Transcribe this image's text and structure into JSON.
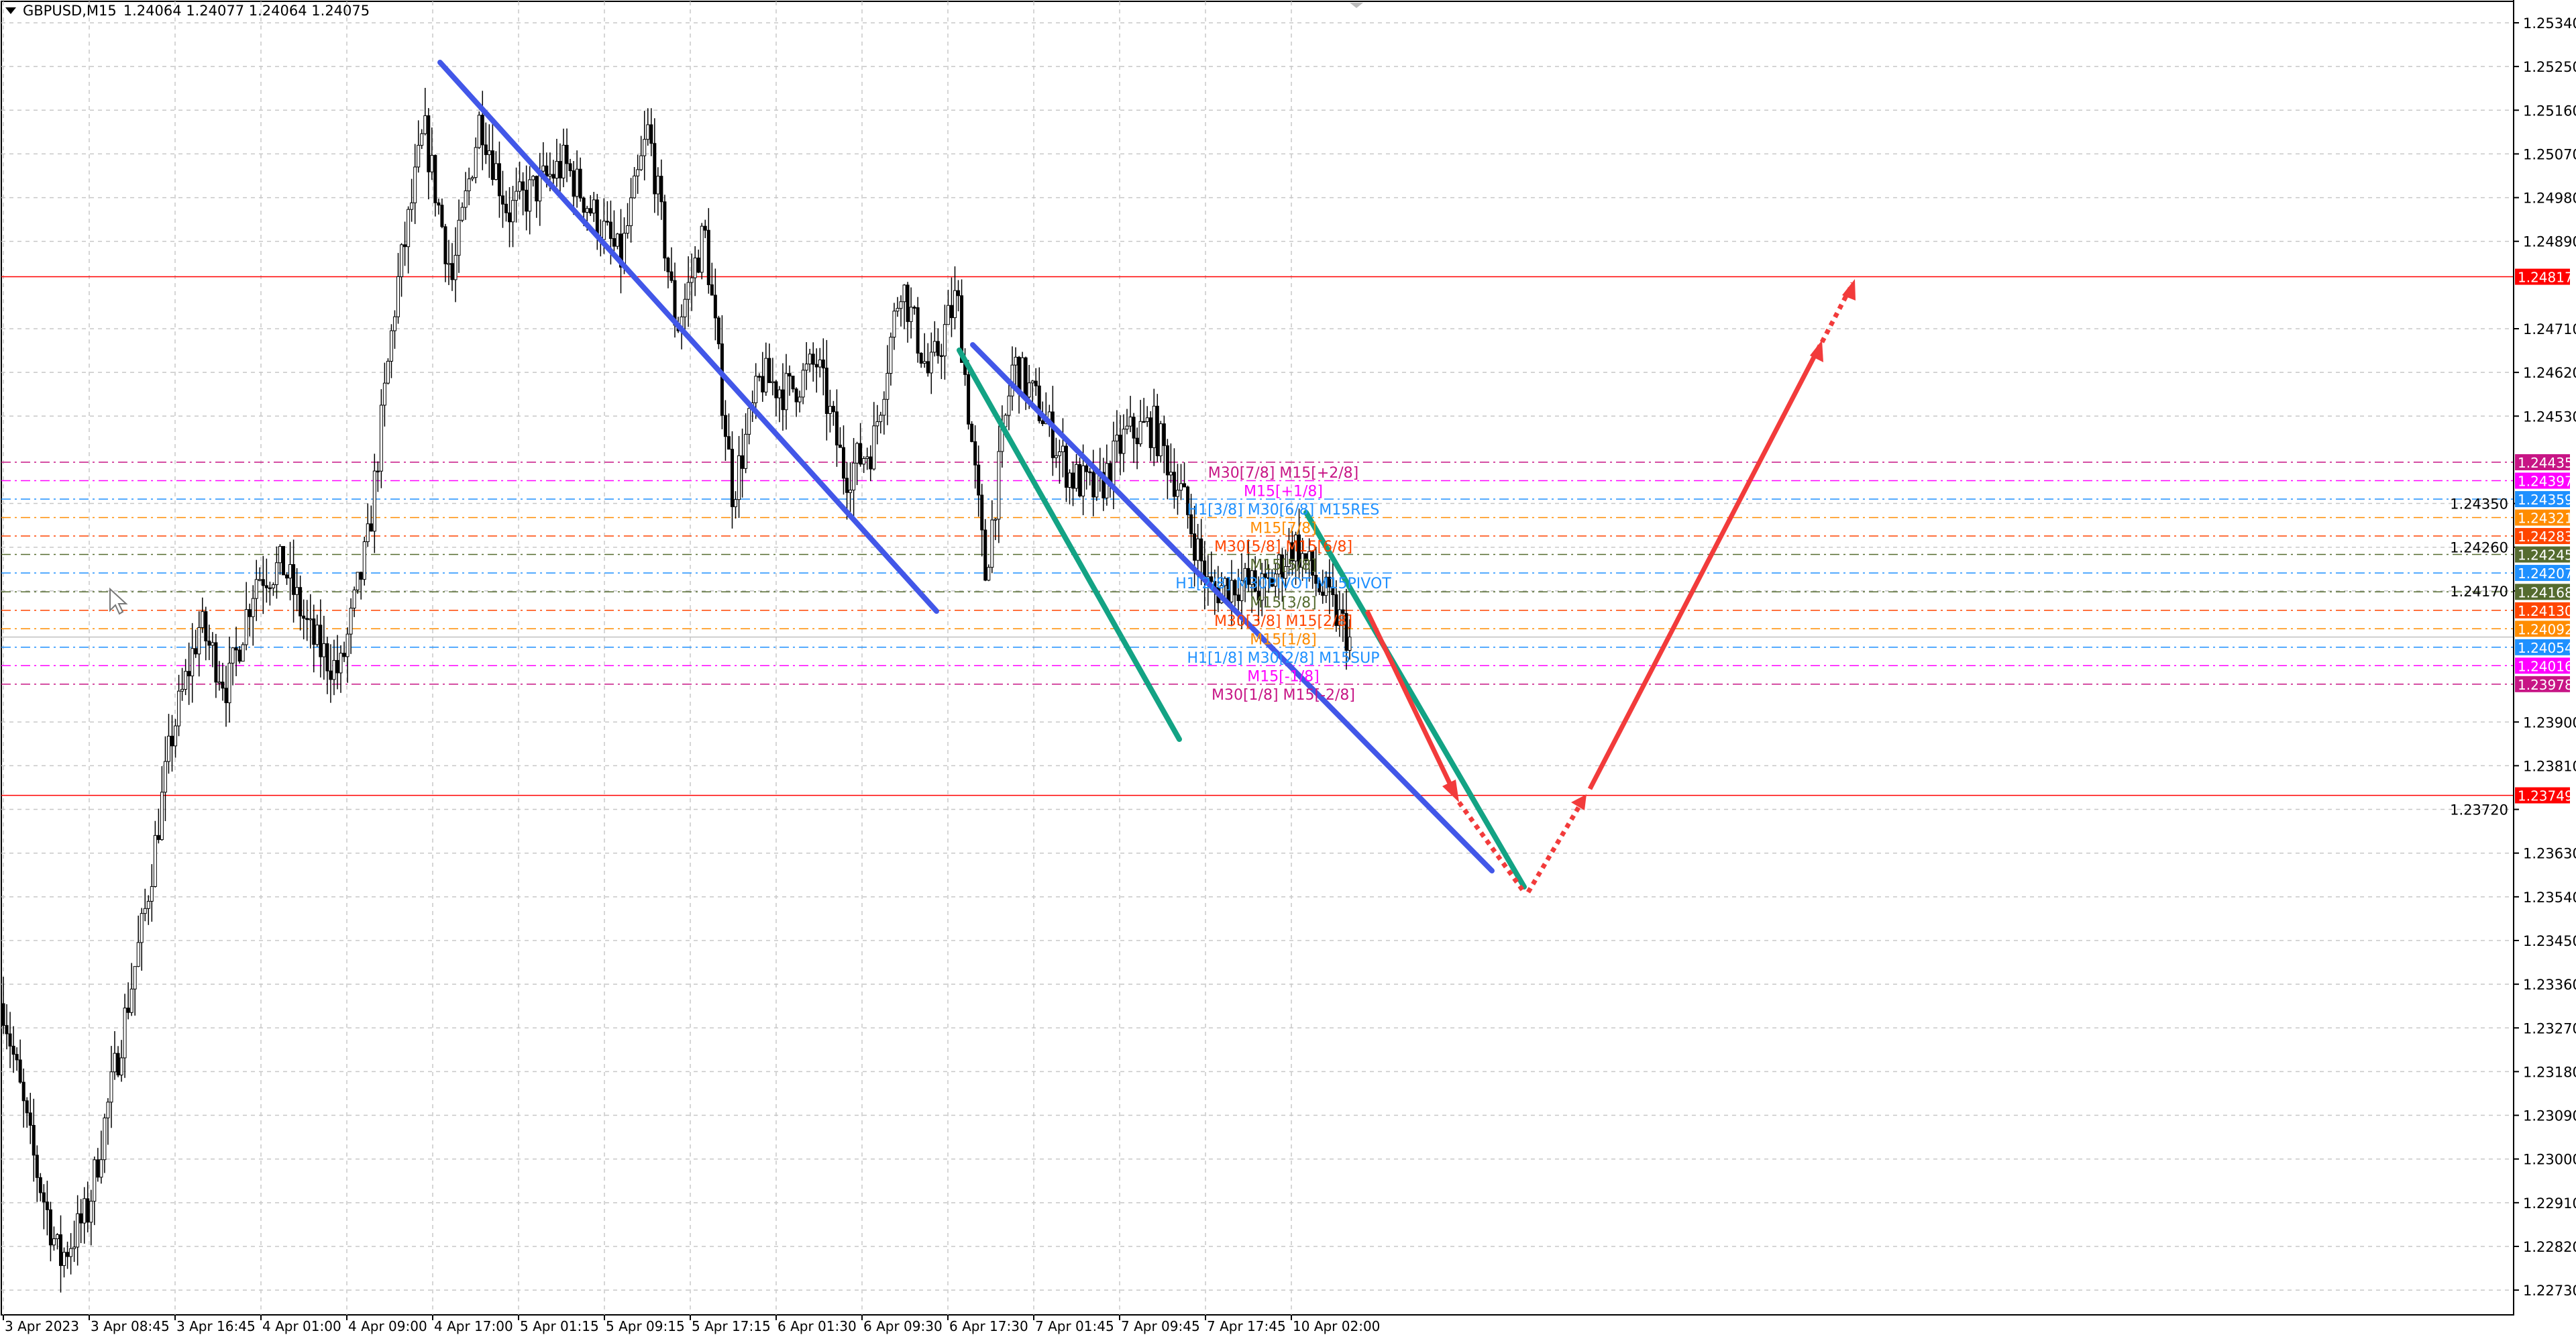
{
  "header": {
    "symbol": "GBPUSD,M15",
    "ohlc": "1.24064 1.24077 1.24064 1.24075",
    "menu_icon": "triangle-down-icon"
  },
  "chart_data": {
    "type": "candlestick",
    "symbol": "GBPUSD",
    "timeframe": "M15",
    "ylim": [
      1.2268,
      1.2538
    ],
    "y_ticks": [
      "1.25340",
      "1.25250",
      "1.25160",
      "1.25070",
      "1.24980",
      "1.24890",
      "1.24710",
      "1.24620",
      "1.24530",
      "1.24350",
      "1.24260",
      "1.24170",
      "1.23900",
      "1.23810",
      "1.23720",
      "1.23630",
      "1.23540",
      "1.23450",
      "1.23360",
      "1.23270",
      "1.23180",
      "1.23090",
      "1.23000",
      "1.22910",
      "1.22820",
      "1.22730"
    ],
    "x_ticks": [
      "3 Apr 2023",
      "3 Apr 08:45",
      "3 Apr 16:45",
      "4 Apr 01:00",
      "4 Apr 09:00",
      "4 Apr 17:00",
      "5 Apr 01:15",
      "5 Apr 09:15",
      "5 Apr 17:15",
      "6 Apr 01:30",
      "6 Apr 09:30",
      "6 Apr 17:30",
      "7 Apr 01:45",
      "7 Apr 09:45",
      "7 Apr 17:45",
      "10 Apr 02:00"
    ],
    "approx_close": [
      1.2332,
      1.2302,
      1.2279,
      1.2289,
      1.2319,
      1.2349,
      1.2387,
      1.241,
      1.2397,
      1.242,
      1.2422,
      1.2407,
      1.24,
      1.2427,
      1.2478,
      1.2512,
      1.2481,
      1.2515,
      1.2495,
      1.25,
      1.2505,
      1.2495,
      1.2485,
      1.2512,
      1.2471,
      1.2491,
      1.2437,
      1.2461,
      1.2458,
      1.2464,
      1.2441,
      1.2447,
      1.2481,
      1.2461,
      1.2478,
      1.242,
      1.2464,
      1.2454,
      1.2441,
      1.2437,
      1.2449,
      1.2451,
      1.2437,
      1.2417,
      1.2419,
      1.2417,
      1.2427,
      1.2417,
      1.24075
    ],
    "current_price": "1.24075",
    "grid": true,
    "red_levels": [
      {
        "price": "1.24817",
        "color": "#FF0000"
      },
      {
        "price": "1.23749",
        "color": "#FF0000"
      }
    ],
    "levels": [
      {
        "price": "1.24435",
        "color": "#C71585",
        "label": "M30[7/8] M15[+2/8]"
      },
      {
        "price": "1.24397",
        "color": "#FF00FF",
        "label": "M15[+1/8]"
      },
      {
        "price": "1.24359",
        "color": "#1E90FF",
        "label": "H1[3/8] M30[6/8] M15RES"
      },
      {
        "price": "1.24321",
        "color": "#FF8C00",
        "label": "M15[7/8]"
      },
      {
        "price": "1.24283",
        "color": "#FF4500",
        "label": "M30[5/8] M15[6/8]"
      },
      {
        "price": "1.24245",
        "color": "#556B2F",
        "label": "M15[5/8]"
      },
      {
        "price": "1.24207",
        "color": "#1E90FF",
        "label": "H1[2/8] M30PIVOT M15PIVOT"
      },
      {
        "price": "1.24168",
        "color": "#556B2F",
        "label": "M15[3/8]"
      },
      {
        "price": "1.24130",
        "color": "#FF4500",
        "label": "M30[3/8] M15[2/8]"
      },
      {
        "price": "1.24092",
        "color": "#FF8C00",
        "label": "M15[1/8]"
      },
      {
        "price": "1.24054",
        "color": "#1E90FF",
        "label": "H1[1/8] M30[2/8] M15SUP"
      },
      {
        "price": "1.24016",
        "color": "#FF00FF",
        "label": "M15[-1/8]"
      },
      {
        "price": "1.23978",
        "color": "#C71585",
        "label": "M30[1/8] M15[-2/8]"
      }
    ],
    "drawing_colors": {
      "channel": "#4257E8",
      "channel2": "#13A384",
      "forecast": "#F23B3B"
    }
  }
}
